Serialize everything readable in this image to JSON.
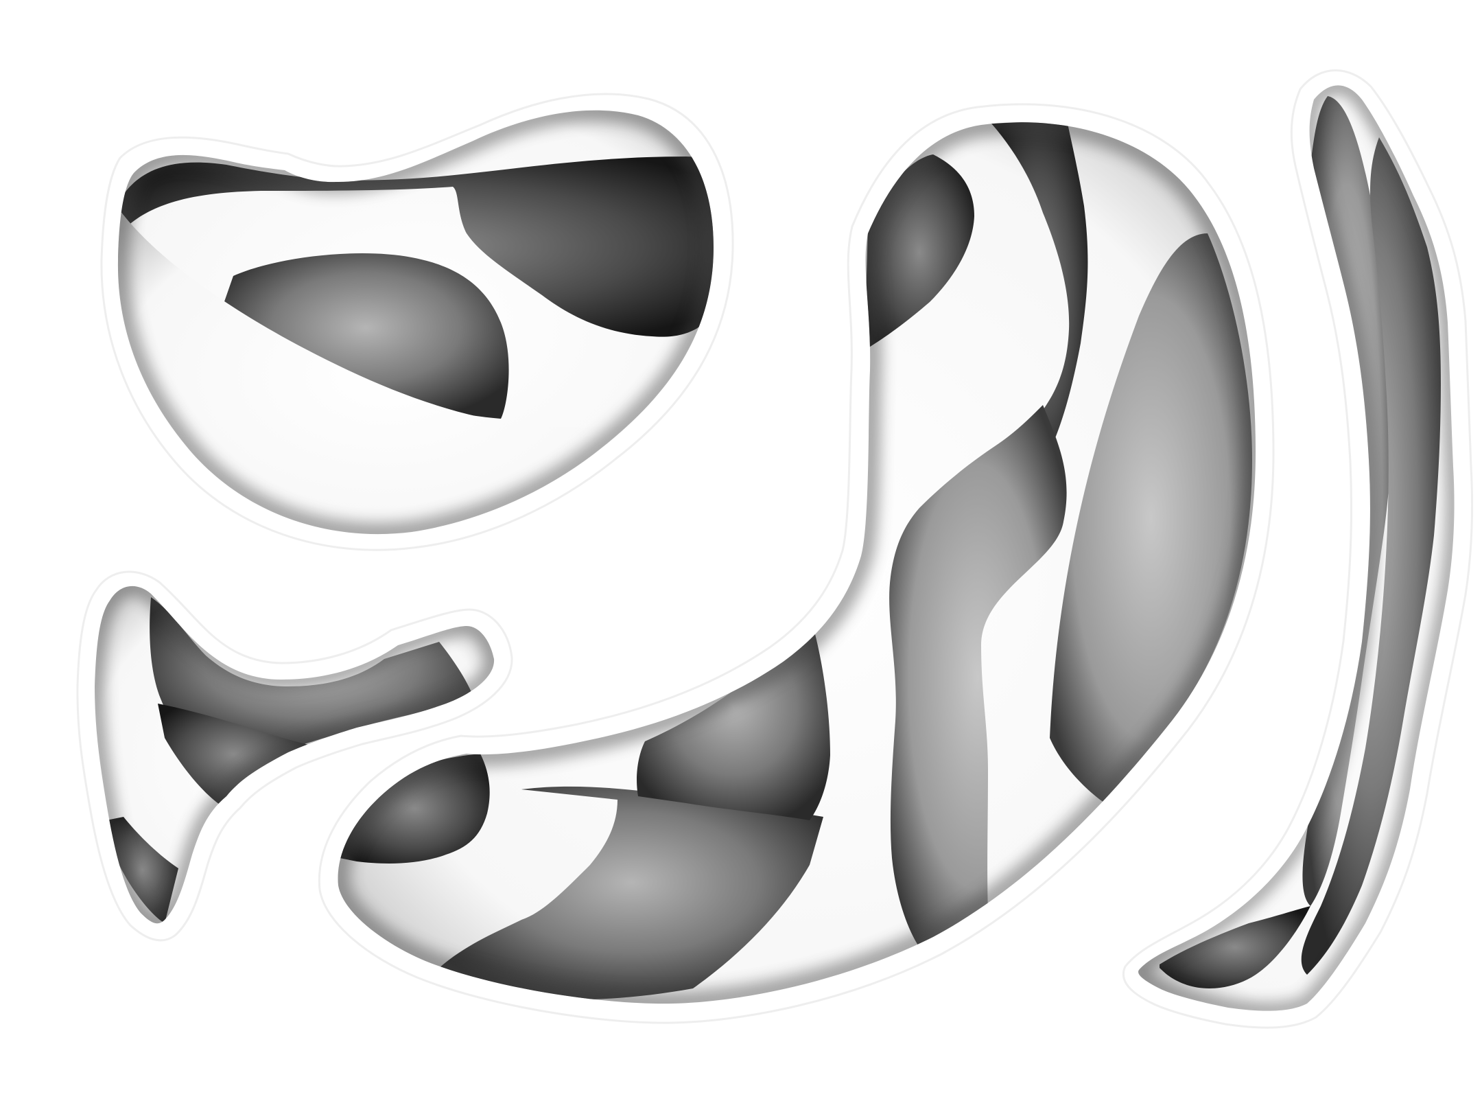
{
  "image": {
    "kind": "abstract-papercut-illustration",
    "colors": {
      "background": "#ffffff",
      "paper": "#ffffff",
      "shadow_dark": "#1c1c1c",
      "shadow_mid": "#6e6e6e",
      "shadow_light": "#bdbdbd",
      "outline": "#eeeeee"
    },
    "shapes": [
      {
        "id": "top-left-blob",
        "icon": "blob-icon"
      },
      {
        "id": "bottom-left-hook",
        "icon": "hook-icon"
      },
      {
        "id": "center-swoosh",
        "icon": "swoosh-icon"
      },
      {
        "id": "right-feather",
        "icon": "feather-icon"
      }
    ]
  }
}
